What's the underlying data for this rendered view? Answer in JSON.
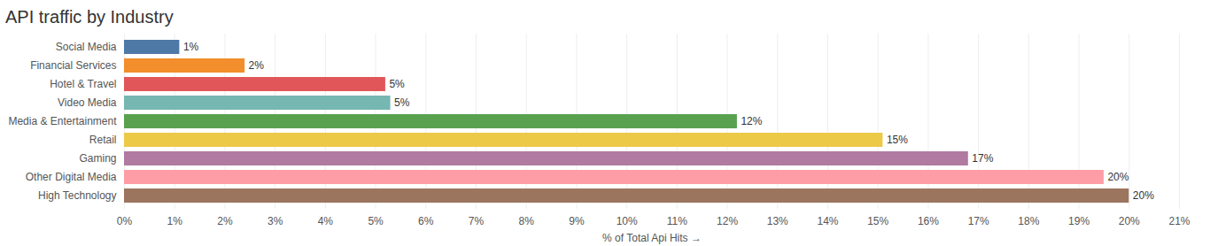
{
  "chart_data": {
    "type": "bar",
    "title": "API traffic by Industry",
    "orientation": "horizontal",
    "x_label": "% of Total Api Hits",
    "categories": [
      "Social Media",
      "Financial Services",
      "Hotel & Travel",
      "Video Media",
      "Media & Entertainment",
      "Retail",
      "Gaming",
      "Other Digital Media",
      "High Technology"
    ],
    "values": [
      1.1,
      2.4,
      5.2,
      5.3,
      12.2,
      15.1,
      16.8,
      19.5,
      20.0
    ],
    "value_labels": [
      "1%",
      "2%",
      "5%",
      "5%",
      "12%",
      "15%",
      "17%",
      "20%",
      "20%"
    ],
    "colors": [
      "#4e79a7",
      "#f28e2b",
      "#e15759",
      "#76b7b2",
      "#59a14f",
      "#edc948",
      "#b07aa1",
      "#ff9da7",
      "#9c755f"
    ],
    "xlim": [
      0,
      21
    ],
    "xticks": [
      {
        "value": 0,
        "label": "0%"
      },
      {
        "value": 1,
        "label": "1%"
      },
      {
        "value": 2,
        "label": "2%"
      },
      {
        "value": 3,
        "label": "3%"
      },
      {
        "value": 4,
        "label": "4%"
      },
      {
        "value": 5,
        "label": "5%"
      },
      {
        "value": 6,
        "label": "6%"
      },
      {
        "value": 7,
        "label": "7%"
      },
      {
        "value": 8,
        "label": "8%"
      },
      {
        "value": 9,
        "label": "9%"
      },
      {
        "value": 10,
        "label": "10%"
      },
      {
        "value": 11,
        "label": "11%"
      },
      {
        "value": 12,
        "label": "12%"
      },
      {
        "value": 13,
        "label": "13%"
      },
      {
        "value": 14,
        "label": "14%"
      },
      {
        "value": 15,
        "label": "15%"
      },
      {
        "value": 16,
        "label": "16%"
      },
      {
        "value": 17,
        "label": "17%"
      },
      {
        "value": 18,
        "label": "18%"
      },
      {
        "value": 19,
        "label": "19%"
      },
      {
        "value": 20,
        "label": "20%"
      },
      {
        "value": 21,
        "label": "21%"
      }
    ],
    "grid": true,
    "data_labels": true
  }
}
